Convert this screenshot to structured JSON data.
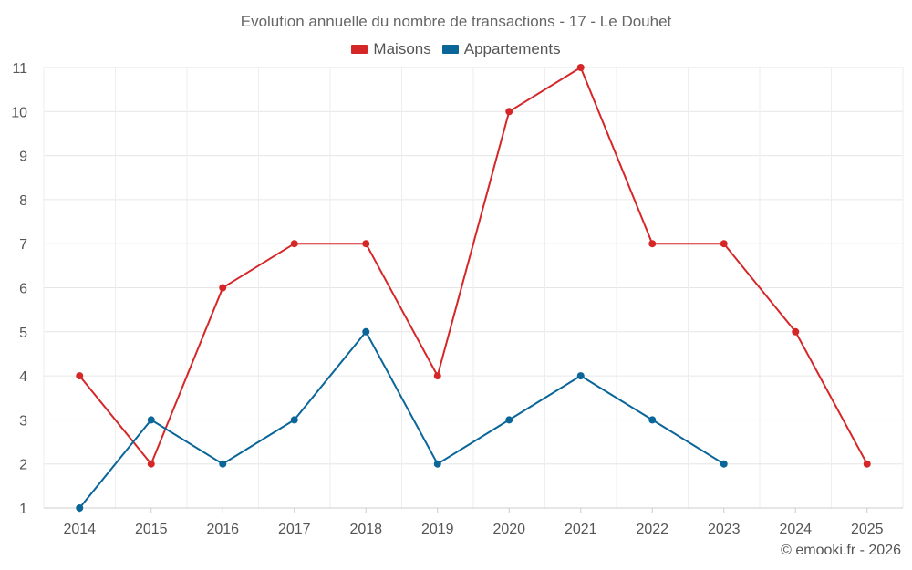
{
  "chart_data": {
    "type": "line",
    "title": "Evolution annuelle du nombre de transactions - 17 - Le Douhet",
    "xlabel": "",
    "ylabel": "",
    "x": [
      "2014",
      "2015",
      "2016",
      "2017",
      "2018",
      "2019",
      "2020",
      "2021",
      "2022",
      "2023",
      "2024",
      "2025"
    ],
    "ylim": [
      1,
      11
    ],
    "yticks": [
      1,
      2,
      3,
      4,
      5,
      6,
      7,
      8,
      9,
      10,
      11
    ],
    "grid": true,
    "legend_position": "top-center",
    "series": [
      {
        "name": "Maisons",
        "color": "#d62728",
        "values": [
          4,
          2,
          6,
          7,
          7,
          4,
          10,
          11,
          7,
          7,
          5,
          2
        ]
      },
      {
        "name": "Appartements",
        "color": "#0a6699",
        "values": [
          1,
          3,
          2,
          3,
          5,
          2,
          3,
          4,
          3,
          2,
          null,
          null
        ]
      }
    ]
  },
  "credit": "© emooki.fr - 2026"
}
